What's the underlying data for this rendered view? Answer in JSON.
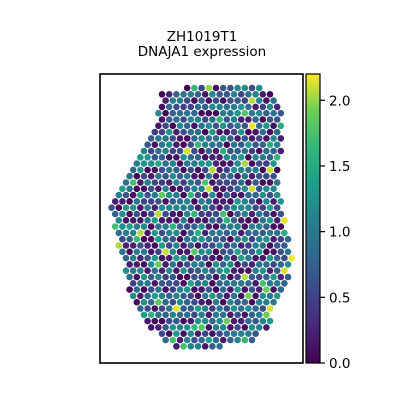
{
  "chart_data": {
    "type": "scatter",
    "subtype": "spatial-hexbin",
    "title": "ZH1019T1",
    "subtitle": "DNAJA1 expression",
    "xlabel": "",
    "ylabel": "",
    "grid": false,
    "axis_ticks_visible": false,
    "colorbar": {
      "colormap": "viridis",
      "range": [
        0.0,
        2.2
      ],
      "ticks": [
        "0.0",
        "0.5",
        "1.0",
        "1.5",
        "2.0"
      ],
      "tick_values": [
        0.0,
        0.5,
        1.0,
        1.5,
        2.0
      ],
      "placement": "right"
    },
    "colors": {
      "low": "#440154",
      "mid": "#21918c",
      "high": "#fde725"
    }
  }
}
